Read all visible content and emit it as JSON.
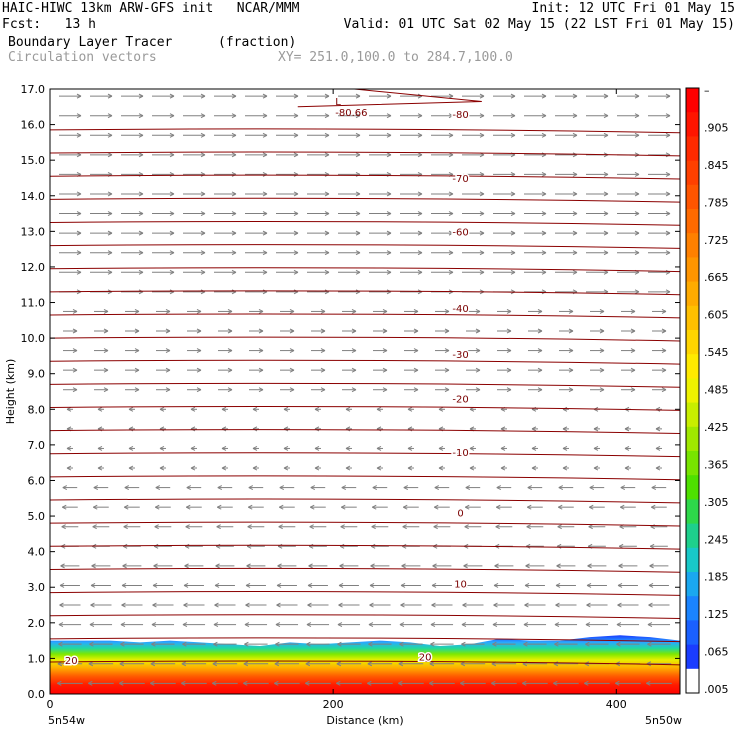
{
  "header": {
    "title_left": "HAIC-HIWC 13km ARW-GFS init   NCAR/MMM",
    "fcst_label": "Fcst:   13 h",
    "init": "Init: 12 UTC Fri 01 May 15",
    "valid": "Valid: 01 UTC Sat 02 May 15 (22 LST Fri 01 May 15)",
    "field1": "Boundary Layer Tracer",
    "field1_units": "(fraction)",
    "field2": "Circulation vectors",
    "xy": "XY= 251.0,100.0 to 284.7,100.0"
  },
  "colors": {
    "contour": "#8b0000",
    "vector": "#808080",
    "frame": "#000000"
  },
  "chart_data": {
    "type": "heatmap",
    "xlabel": "Distance (km)",
    "ylabel": "Height (km)",
    "xlim": [
      0,
      445
    ],
    "ylim": [
      0,
      17
    ],
    "x_ticks": [
      "0",
      "200",
      "400"
    ],
    "x_tick_values": [
      0,
      200,
      400
    ],
    "y_ticks": [
      "0.0",
      "1.0",
      "2.0",
      "3.0",
      "4.0",
      "5.0",
      "6.0",
      "7.0",
      "8.0",
      "9.0",
      "10.0",
      "11.0",
      "12.0",
      "13.0",
      "14.0",
      "15.0",
      "16.0",
      "17.0"
    ],
    "x_end_left": "5n54w",
    "x_end_right": "5n50w",
    "colorbar_labels": [
      "–",
      ".905",
      ".845",
      ".785",
      ".725",
      ".665",
      ".605",
      ".545",
      ".485",
      ".425",
      ".365",
      ".305",
      ".245",
      ".185",
      ".125",
      ".065",
      ".005"
    ],
    "contour_labels": [
      {
        "text": "-80",
        "x": 290,
        "y": 16.3
      },
      {
        "text": "-70",
        "x": 290,
        "y": 14.5
      },
      {
        "text": "-60",
        "x": 290,
        "y": 13.0
      },
      {
        "text": "-40",
        "x": 290,
        "y": 10.85
      },
      {
        "text": "-30",
        "x": 290,
        "y": 9.55
      },
      {
        "text": "-20",
        "x": 290,
        "y": 8.3
      },
      {
        "text": "-10",
        "x": 290,
        "y": 6.8
      },
      {
        "text": "0",
        "x": 290,
        "y": 5.1
      },
      {
        "text": "10",
        "x": 290,
        "y": 3.1
      },
      {
        "text": "20",
        "x": 15,
        "y": 0.95
      },
      {
        "text": "20",
        "x": 265,
        "y": 1.05
      }
    ],
    "low_marker": {
      "text": "L",
      "value": "-80.66",
      "x": 210,
      "y": 16.5
    },
    "tracer_top_km": [
      1.5,
      1.5,
      1.5,
      1.45,
      1.5,
      1.45,
      1.4,
      1.35,
      1.45,
      1.4,
      1.45,
      1.5,
      1.45,
      1.35,
      1.4,
      1.55,
      1.5,
      1.5,
      1.6,
      1.65,
      1.6,
      1.5
    ]
  }
}
